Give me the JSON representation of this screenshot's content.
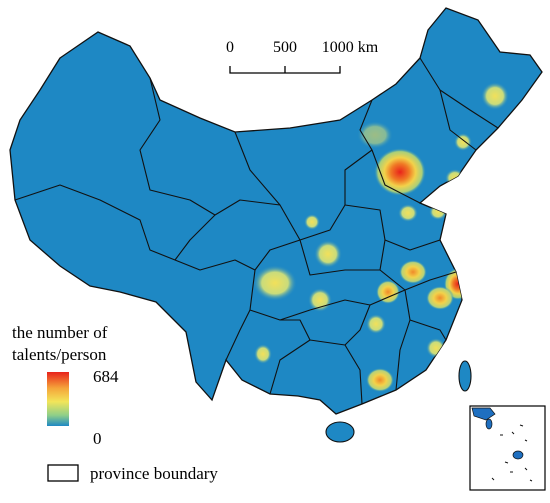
{
  "scale_bar": {
    "labels": [
      "0",
      "500",
      "1000 km"
    ]
  },
  "legend": {
    "title_lines": [
      "the number of",
      "talents/person"
    ],
    "max_label": "684",
    "min_label": "0",
    "boundary_label": "province boundary"
  }
}
